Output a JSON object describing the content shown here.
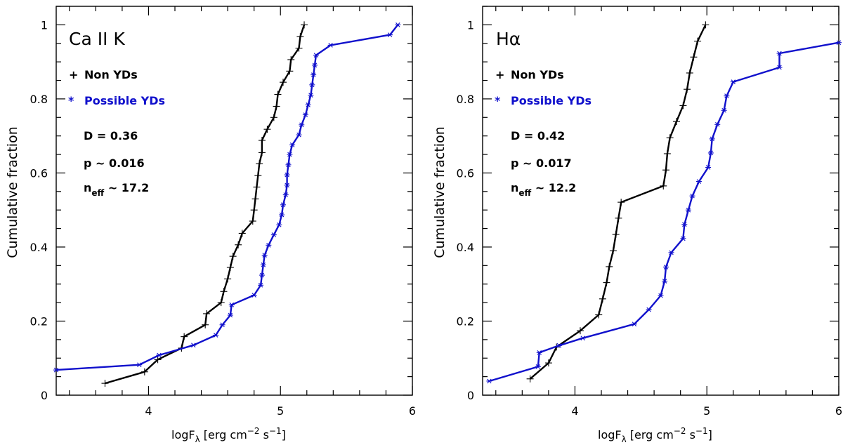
{
  "colors": {
    "non_yd": "#000000",
    "possible_yd": "#1010cc"
  },
  "chart_data": [
    {
      "type": "line",
      "title": "Ca II K",
      "xlabel_main": "logF",
      "xlabel_sub": "λ",
      "xlabel_unit_open": " [erg cm",
      "xlabel_unit_sup1": "−2",
      "xlabel_unit_mid": " s",
      "xlabel_unit_sup2": "−1",
      "xlabel_unit_close": "]",
      "ylabel": "Cumulative fraction",
      "xlim": [
        3.3,
        6.0
      ],
      "ylim": [
        0,
        1.05
      ],
      "xticks": [
        "4",
        "5",
        "6"
      ],
      "yticks": [
        "0",
        "0.2",
        "0.4",
        "0.6",
        "0.8",
        "1"
      ],
      "legend": [
        {
          "marker": "+",
          "label": "Non YDs"
        },
        {
          "marker": "*",
          "label": "Possible YDs"
        }
      ],
      "stats": {
        "D": "D = 0.36",
        "p": "p ~ 0.016",
        "n_main": "n",
        "n_sub": "eff",
        "n_val": " ~ 17.2"
      },
      "series": [
        {
          "name": "Non YDs",
          "marker": "+",
          "points": [
            [
              3.67,
              0.032
            ],
            [
              3.97,
              0.063
            ],
            [
              4.07,
              0.096
            ],
            [
              4.25,
              0.127
            ],
            [
              4.27,
              0.158
            ],
            [
              4.43,
              0.19
            ],
            [
              4.44,
              0.22
            ],
            [
              4.55,
              0.25
            ],
            [
              4.57,
              0.28
            ],
            [
              4.6,
              0.314
            ],
            [
              4.62,
              0.345
            ],
            [
              4.64,
              0.375
            ],
            [
              4.68,
              0.406
            ],
            [
              4.71,
              0.437
            ],
            [
              4.79,
              0.47
            ],
            [
              4.8,
              0.5
            ],
            [
              4.81,
              0.53
            ],
            [
              4.82,
              0.562
            ],
            [
              4.83,
              0.593
            ],
            [
              4.84,
              0.625
            ],
            [
              4.86,
              0.655
            ],
            [
              4.86,
              0.688
            ],
            [
              4.9,
              0.718
            ],
            [
              4.95,
              0.75
            ],
            [
              4.97,
              0.78
            ],
            [
              4.98,
              0.812
            ],
            [
              5.02,
              0.845
            ],
            [
              5.07,
              0.875
            ],
            [
              5.08,
              0.906
            ],
            [
              5.14,
              0.937
            ],
            [
              5.15,
              0.968
            ],
            [
              5.18,
              1.0
            ]
          ]
        },
        {
          "name": "Possible YDs",
          "marker": "*",
          "points": [
            [
              3.3,
              0.068
            ],
            [
              3.93,
              0.082
            ],
            [
              4.08,
              0.108
            ],
            [
              4.34,
              0.135
            ],
            [
              4.51,
              0.162
            ],
            [
              4.56,
              0.19
            ],
            [
              4.62,
              0.216
            ],
            [
              4.63,
              0.244
            ],
            [
              4.8,
              0.27
            ],
            [
              4.85,
              0.297
            ],
            [
              4.86,
              0.324
            ],
            [
              4.87,
              0.352
            ],
            [
              4.88,
              0.378
            ],
            [
              4.91,
              0.405
            ],
            [
              4.95,
              0.433
            ],
            [
              4.99,
              0.46
            ],
            [
              5.01,
              0.487
            ],
            [
              5.02,
              0.514
            ],
            [
              5.04,
              0.541
            ],
            [
              5.05,
              0.567
            ],
            [
              5.05,
              0.595
            ],
            [
              5.06,
              0.622
            ],
            [
              5.07,
              0.65
            ],
            [
              5.09,
              0.676
            ],
            [
              5.14,
              0.703
            ],
            [
              5.16,
              0.73
            ],
            [
              5.19,
              0.757
            ],
            [
              5.21,
              0.784
            ],
            [
              5.23,
              0.81
            ],
            [
              5.24,
              0.838
            ],
            [
              5.25,
              0.865
            ],
            [
              5.26,
              0.891
            ],
            [
              5.27,
              0.918
            ],
            [
              5.38,
              0.945
            ],
            [
              5.83,
              0.973
            ],
            [
              5.89,
              1.0
            ]
          ]
        }
      ]
    },
    {
      "type": "line",
      "title": "Hα",
      "xlabel_main": "logF",
      "xlabel_sub": "λ",
      "xlabel_unit_open": " [erg cm",
      "xlabel_unit_sup1": "−2",
      "xlabel_unit_mid": " s",
      "xlabel_unit_sup2": "−1",
      "xlabel_unit_close": "]",
      "ylabel": "Cumulative fraction",
      "xlim": [
        3.3,
        6.0
      ],
      "ylim": [
        0,
        1.05
      ],
      "xticks": [
        "4",
        "5",
        "6"
      ],
      "yticks": [
        "0",
        "0.2",
        "0.4",
        "0.6",
        "0.8",
        "1"
      ],
      "legend": [
        {
          "marker": "+",
          "label": "Non YDs"
        },
        {
          "marker": "*",
          "label": "Possible YDs"
        }
      ],
      "stats": {
        "D": "D = 0.42",
        "p": "p ~ 0.017",
        "n_main": "n",
        "n_sub": "eff",
        "n_val": " ~ 12.2"
      },
      "series": [
        {
          "name": "Non YDs",
          "marker": "+",
          "points": [
            [
              3.66,
              0.044
            ],
            [
              3.8,
              0.087
            ],
            [
              3.86,
              0.13
            ],
            [
              4.04,
              0.174
            ],
            [
              4.18,
              0.217
            ],
            [
              4.21,
              0.26
            ],
            [
              4.24,
              0.304
            ],
            [
              4.26,
              0.347
            ],
            [
              4.29,
              0.39
            ],
            [
              4.31,
              0.434
            ],
            [
              4.33,
              0.478
            ],
            [
              4.35,
              0.521
            ],
            [
              4.67,
              0.565
            ],
            [
              4.69,
              0.608
            ],
            [
              4.7,
              0.652
            ],
            [
              4.72,
              0.695
            ],
            [
              4.77,
              0.739
            ],
            [
              4.82,
              0.782
            ],
            [
              4.85,
              0.826
            ],
            [
              4.87,
              0.87
            ],
            [
              4.9,
              0.913
            ],
            [
              4.93,
              0.956
            ],
            [
              4.99,
              1.0
            ]
          ]
        },
        {
          "name": "Possible YDs",
          "marker": "*",
          "points": [
            [
              3.35,
              0.038
            ],
            [
              3.72,
              0.077
            ],
            [
              3.73,
              0.115
            ],
            [
              3.88,
              0.134
            ],
            [
              4.06,
              0.154
            ],
            [
              4.45,
              0.192
            ],
            [
              4.56,
              0.231
            ],
            [
              4.65,
              0.269
            ],
            [
              4.68,
              0.308
            ],
            [
              4.69,
              0.346
            ],
            [
              4.73,
              0.385
            ],
            [
              4.82,
              0.423
            ],
            [
              4.83,
              0.461
            ],
            [
              4.86,
              0.5
            ],
            [
              4.89,
              0.538
            ],
            [
              4.94,
              0.577
            ],
            [
              5.01,
              0.615
            ],
            [
              5.03,
              0.654
            ],
            [
              5.04,
              0.692
            ],
            [
              5.08,
              0.731
            ],
            [
              5.13,
              0.769
            ],
            [
              5.15,
              0.808
            ],
            [
              5.2,
              0.846
            ],
            [
              5.55,
              0.885
            ],
            [
              5.55,
              0.923
            ],
            [
              6.0,
              0.952
            ]
          ]
        }
      ]
    }
  ]
}
